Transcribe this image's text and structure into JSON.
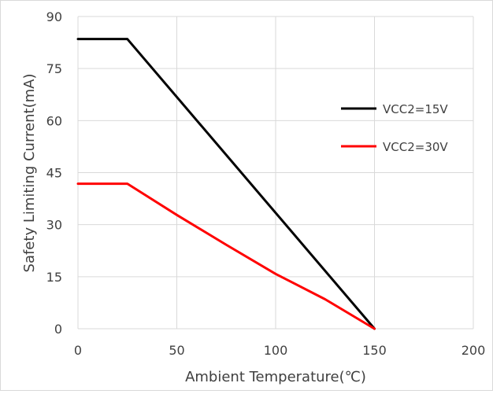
{
  "chart_data": {
    "type": "line",
    "title": "",
    "xlabel": "Ambient Temperature(℃)",
    "ylabel": "Safety Limiting Current(mA)",
    "xlim": [
      0,
      200
    ],
    "ylim": [
      0,
      90
    ],
    "x_ticks": [
      0,
      50,
      100,
      150,
      200
    ],
    "y_ticks": [
      0,
      15,
      30,
      45,
      60,
      75,
      90
    ],
    "grid": true,
    "legend_position": "right",
    "series": [
      {
        "name": "VCC2=15V",
        "color": "#000000",
        "x": [
          0,
          25,
          150
        ],
        "y": [
          83.5,
          83.5,
          0
        ]
      },
      {
        "name": "VCC2=30V",
        "color": "#ff0000",
        "x": [
          0,
          25,
          50,
          75,
          100,
          125,
          150
        ],
        "y": [
          41.8,
          41.8,
          32.8,
          24.2,
          15.8,
          8.5,
          0
        ]
      }
    ]
  }
}
